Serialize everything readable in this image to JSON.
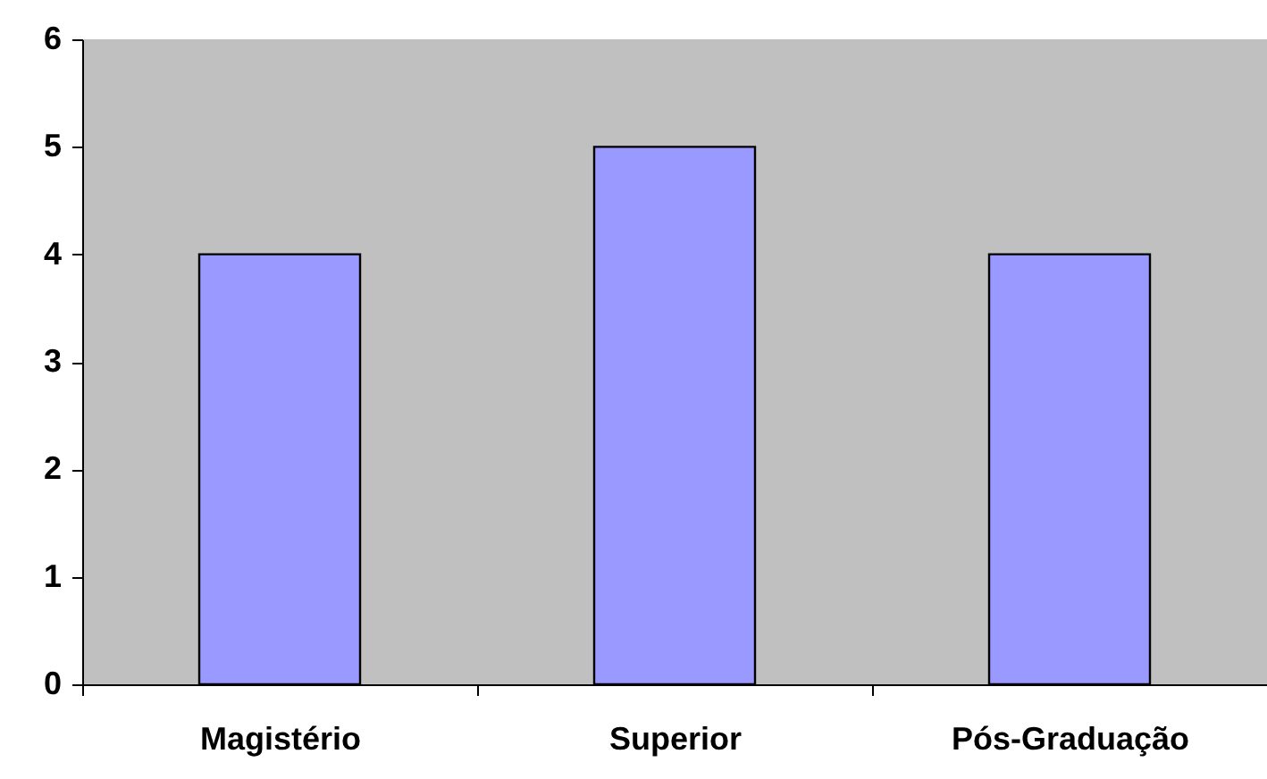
{
  "chart_data": {
    "type": "bar",
    "categories": [
      "Magistério",
      "Superior",
      "Pós-Graduação"
    ],
    "values": [
      4,
      5,
      4
    ],
    "color": "#9999ff",
    "ylim": [
      0,
      6
    ],
    "yticks": [
      0,
      1,
      2,
      3,
      4,
      5,
      6
    ],
    "grid": false
  }
}
